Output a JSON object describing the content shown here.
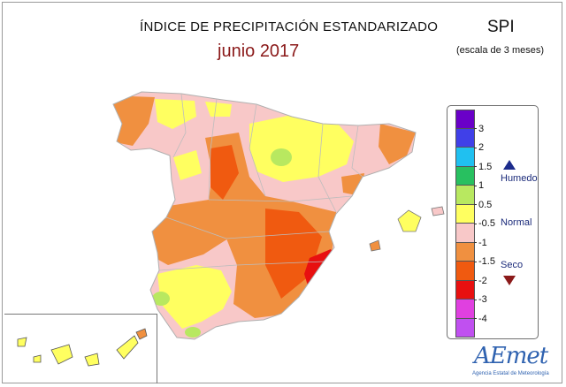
{
  "header": {
    "title": "ÍNDICE DE PRECIPITACIÓN ESTANDARIZADO",
    "period": "junio 2017",
    "index_name": "SPI",
    "scale_note": "(escala de 3 meses)"
  },
  "legend": {
    "classes": [
      {
        "color": "#6a00c8"
      },
      {
        "color": "#4040e8"
      },
      {
        "color": "#20c0f0"
      },
      {
        "color": "#28c060"
      },
      {
        "color": "#b8e860"
      },
      {
        "color": "#ffff60"
      },
      {
        "color": "#f8c8c8"
      },
      {
        "color": "#f09040"
      },
      {
        "color": "#f05a10"
      },
      {
        "color": "#e81010"
      },
      {
        "color": "#e040e0"
      },
      {
        "color": "#c050f0"
      }
    ],
    "ticks": [
      "3",
      "2",
      "1.5",
      "1",
      "0.5",
      "-0.5",
      "-1",
      "-1.5",
      "-2",
      "-3",
      "-4"
    ],
    "categories": {
      "wet": "Humedo",
      "normal": "Normal",
      "dry": "Seco"
    },
    "colors": {
      "wet_arrow": "#1c2c8c",
      "dry_arrow": "#8b1a1a"
    }
  },
  "logo": {
    "name": "AEmet",
    "subtitle": "Agencia Estatal de Meteorología"
  }
}
